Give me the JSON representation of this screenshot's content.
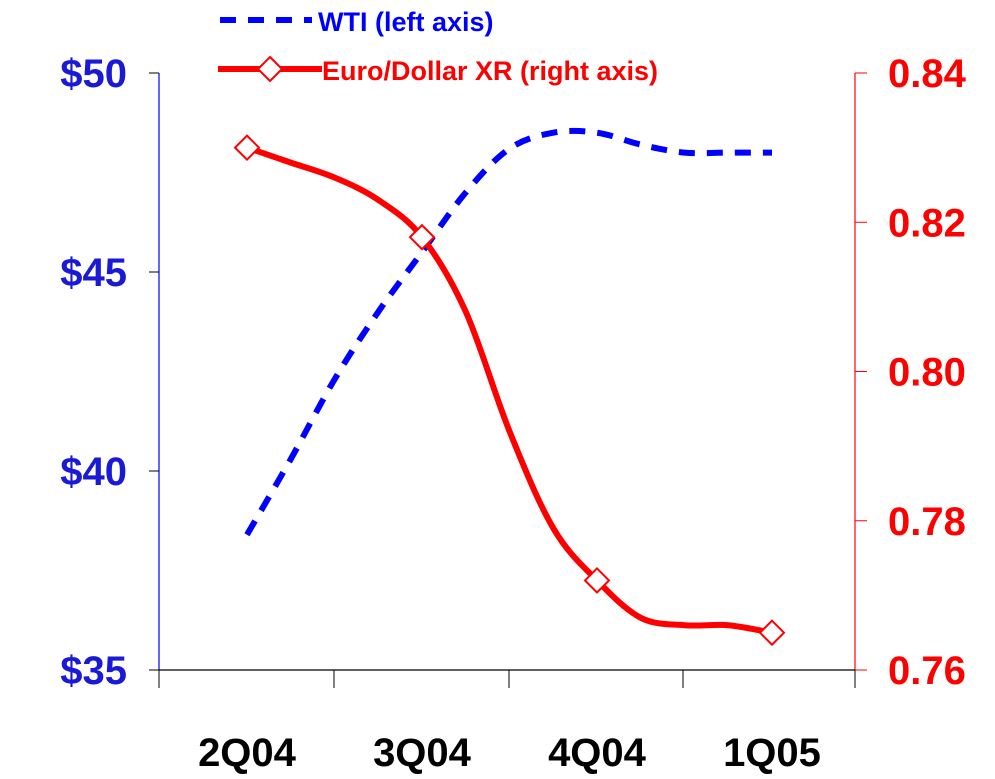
{
  "chart_data": {
    "type": "line",
    "categories": [
      "2Q04",
      "3Q04",
      "4Q04",
      "1Q05"
    ],
    "legend_placement": "top-center",
    "grid": false,
    "left_axis": {
      "ylim": [
        35,
        50
      ],
      "ticks": [
        35,
        40,
        45,
        50
      ],
      "tick_labels": [
        "$35",
        "$40",
        "$45",
        "$50"
      ],
      "color": "#0000ff"
    },
    "right_axis": {
      "ylim": [
        0.76,
        0.84
      ],
      "ticks": [
        0.76,
        0.78,
        0.8,
        0.82,
        0.84
      ],
      "tick_labels": [
        "0.76",
        "0.78",
        "0.80",
        "0.82",
        "0.84"
      ],
      "color": "#ff0000"
    },
    "series": [
      {
        "name": "WTI (left axis)",
        "axis": "left",
        "style": "dashed",
        "color": "#0000ff",
        "x": [
          0,
          0.25,
          0.5,
          0.75,
          1,
          1.25,
          1.5,
          1.75,
          2,
          2.25,
          2.5,
          2.75,
          3
        ],
        "values": [
          38.4,
          40.3,
          42.3,
          44.0,
          45.5,
          47.0,
          48.1,
          48.5,
          48.5,
          48.2,
          48.0,
          48.0,
          48.0
        ]
      },
      {
        "name": "Euro/Dollar XR (right axis)",
        "axis": "right",
        "style": "solid",
        "color": "#ff0000",
        "markers": "open-diamond",
        "x": [
          0,
          0.25,
          0.5,
          0.75,
          1,
          1.25,
          1.5,
          1.75,
          2,
          2.25,
          2.5,
          2.75,
          3
        ],
        "values": [
          0.83,
          0.828,
          0.826,
          0.823,
          0.818,
          0.808,
          0.792,
          0.779,
          0.772,
          0.767,
          0.766,
          0.766,
          0.765
        ],
        "marker_x": [
          0,
          1,
          2,
          3
        ],
        "marker_values": [
          0.83,
          0.818,
          0.772,
          0.765
        ]
      }
    ]
  }
}
